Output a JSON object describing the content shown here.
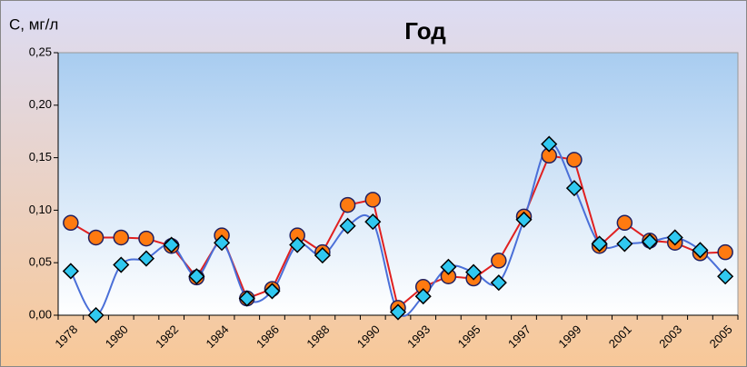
{
  "chart_data": {
    "type": "line",
    "title": "Год",
    "y_label": "С, мг/л",
    "categories": [
      "1978",
      null,
      "1980",
      null,
      "1982",
      null,
      "1984",
      null,
      "1986",
      null,
      "1988",
      null,
      "1990",
      null,
      "1993",
      null,
      "1995",
      null,
      "1997",
      null,
      "1999",
      null,
      "2001",
      null,
      "2003",
      null,
      "2005"
    ],
    "series": [
      {
        "color": "#e02020",
        "marker": "circle",
        "marker_color": "#ff7a10",
        "smooth": false,
        "values": [
          0.088,
          0.074,
          0.074,
          0.073,
          0.066,
          0.036,
          0.076,
          0.016,
          0.025,
          0.076,
          0.06,
          0.105,
          0.11,
          0.007,
          0.027,
          0.037,
          0.035,
          0.052,
          0.094,
          0.152,
          0.148,
          0.066,
          0.088,
          0.071,
          0.069,
          0.059,
          0.06
        ]
      },
      {
        "color": "#4a6fd8",
        "marker": "diamond",
        "marker_color": "#30c8f0",
        "smooth": true,
        "values": [
          0.042,
          0.0,
          0.048,
          0.054,
          0.067,
          0.037,
          0.069,
          0.016,
          0.023,
          0.067,
          0.057,
          0.085,
          0.089,
          0.003,
          0.018,
          0.046,
          0.041,
          0.031,
          0.091,
          0.163,
          0.121,
          0.068,
          0.068,
          0.07,
          0.074,
          0.062,
          0.037
        ]
      }
    ],
    "ylim": [
      0,
      0.25
    ],
    "yticks": [
      {
        "value": 0,
        "label": "0,00"
      },
      {
        "value": 0.05,
        "label": "0,05"
      },
      {
        "value": 0.1,
        "label": "0,10"
      },
      {
        "value": 0.15,
        "label": "0,15"
      },
      {
        "value": 0.2,
        "label": "0,20"
      },
      {
        "value": 0.25,
        "label": "0,25"
      }
    ],
    "grid": false
  }
}
